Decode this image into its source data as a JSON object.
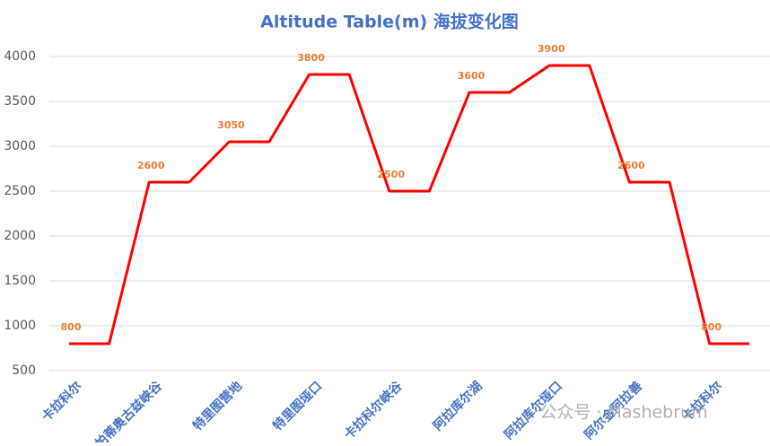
{
  "chart_data": {
    "type": "line",
    "title": "Altitude Table(m) 海拔变化图",
    "categories": [
      "卡拉科尔",
      null,
      "帕蒂奥古兹峡谷",
      null,
      "特里图营地",
      null,
      "特里图垭口",
      null,
      "卡拉科尔峡谷",
      null,
      "阿拉库尔湖",
      null,
      "阿拉库尔垭口",
      null,
      "阿尔金阿拉善",
      null,
      "卡拉科尔",
      null
    ],
    "values": [
      800,
      800,
      2600,
      2600,
      3050,
      3050,
      3800,
      3800,
      2500,
      2500,
      3600,
      3600,
      3900,
      3900,
      2600,
      2600,
      800,
      800
    ],
    "color": "#ff0000",
    "ylim": [
      500,
      4000
    ],
    "yticks": [
      500,
      1000,
      1500,
      2000,
      2500,
      3000,
      3500,
      4000
    ],
    "grid": true,
    "watermark": "公众号 · Mashebrum"
  }
}
